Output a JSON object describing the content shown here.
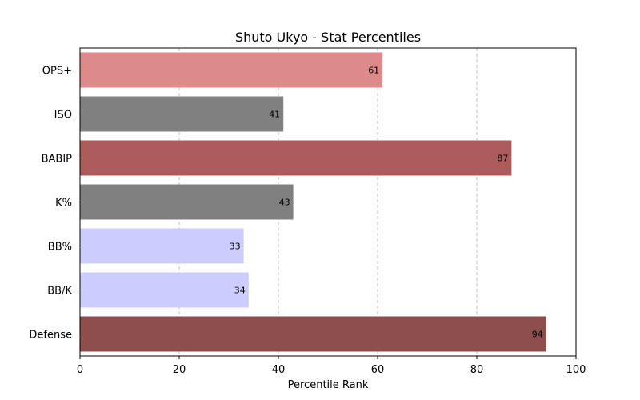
{
  "chart_data": {
    "type": "bar",
    "orientation": "horizontal",
    "title": "Shuto Ukyo - Stat Percentiles",
    "xlabel": "Percentile Rank",
    "ylabel": "",
    "xlim": [
      0,
      100
    ],
    "xticks": [
      0,
      20,
      40,
      60,
      80,
      100
    ],
    "grid": "x, dashed",
    "categories": [
      "OPS+",
      "ISO",
      "BABIP",
      "K%",
      "BB%",
      "BB/K",
      "Defense"
    ],
    "values": [
      61,
      41,
      87,
      43,
      33,
      34,
      94
    ],
    "colors": [
      "#dd8a8a",
      "#808080",
      "#ad5c5c",
      "#808080",
      "#ccccff",
      "#ccccff",
      "#8f4e4e"
    ]
  }
}
